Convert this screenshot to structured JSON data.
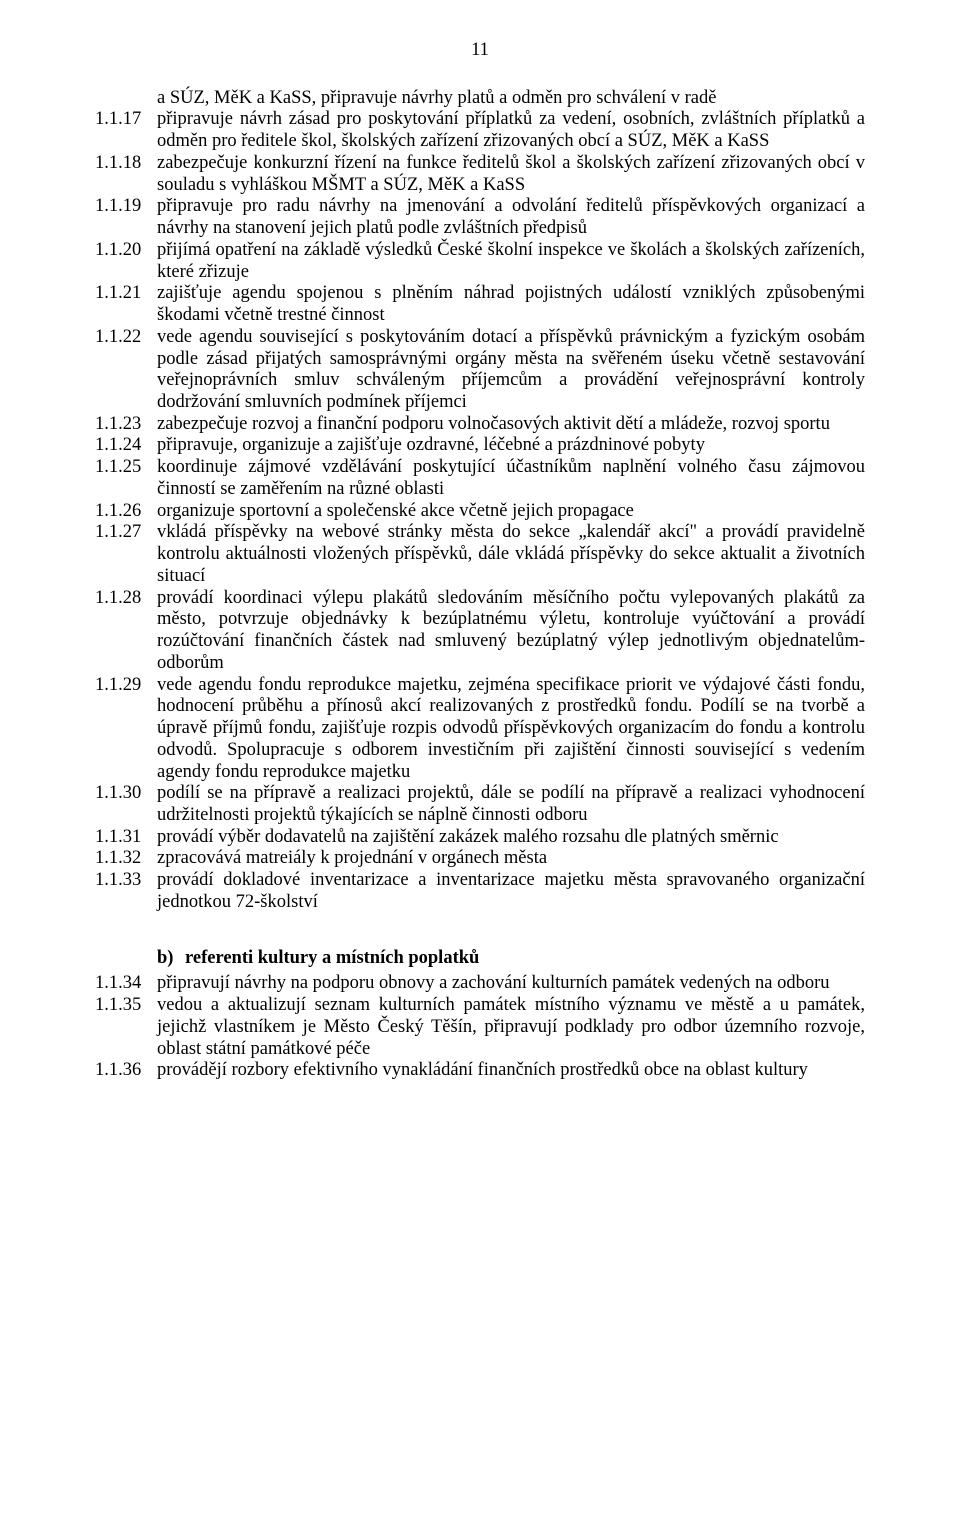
{
  "pageNumber": "11",
  "items": [
    {
      "num": "",
      "text": "a SÚZ, MěK a KaSS, připravuje návrhy platů a odměn pro schválení v radě"
    },
    {
      "num": "1.1.17",
      "text": "připravuje návrh zásad pro poskytování příplatků za vedení, osobních, zvláštních příplatků a odměn pro ředitele škol, školských zařízení zřizovaných obcí a SÚZ, MěK a KaSS"
    },
    {
      "num": "1.1.18",
      "text": "zabezpečuje konkurzní řízení na funkce ředitelů škol a školských zařízení zřizovaných obcí v souladu s vyhláškou MŠMT a SÚZ, MěK a KaSS"
    },
    {
      "num": "1.1.19",
      "text": "připravuje pro radu návrhy na jmenování a odvolání ředitelů příspěvkových organizací a návrhy na stanovení jejich platů podle zvláštních předpisů"
    },
    {
      "num": "1.1.20",
      "text": "přijímá opatření na základě výsledků České školní inspekce ve  školách a školských zařízeních, které zřizuje"
    },
    {
      "num": "1.1.21",
      "text": "zajišťuje agendu spojenou s plněním náhrad pojistných událostí vzniklých způsobenými škodami včetně trestné činnost"
    },
    {
      "num": "1.1.22",
      "text": "vede agendu související s poskytováním dotací a příspěvků právnickým a fyzickým osobám podle zásad přijatých samosprávnými orgány města na svěřeném úseku včetně sestavování veřejnoprávních smluv schváleným příjemcům a provádění veřejnosprávní kontroly dodržování smluvních podmínek příjemci"
    },
    {
      "num": "1.1.23",
      "text": "zabezpečuje rozvoj a finanční podporu volnočasových aktivit dětí a mládeže, rozvoj sportu"
    },
    {
      "num": "1.1.24",
      "text": "připravuje, organizuje a zajišťuje ozdravné, léčebné a prázdninové pobyty"
    },
    {
      "num": "1.1.25",
      "text": "koordinuje zájmové vzdělávání poskytující účastníkům naplnění volného času zájmovou činností se zaměřením na různé oblasti"
    },
    {
      "num": "1.1.26",
      "text": "organizuje sportovní a společenské akce včetně jejich propagace"
    },
    {
      "num": "1.1.27",
      "text": "vkládá příspěvky na webové stránky města do sekce „kalendář akcí\" a provádí pravidelně kontrolu aktuálnosti vložených příspěvků, dále vkládá příspěvky do sekce aktualit a životních situací"
    },
    {
      "num": "1.1.28",
      "text": "provádí koordinaci výlepu plakátů sledováním měsíčního počtu vylepovaných plakátů za město, potvrzuje objednávky k bezúplatnému výletu, kontroluje vyúčtování a provádí rozúčtování finančních částek nad smluvený bezúplatný výlep jednotlivým objednatelům-odborům"
    },
    {
      "num": "1.1.29",
      "text": "vede agendu fondu reprodukce majetku, zejména specifikace priorit ve výdajové části fondu, hodnocení průběhu a přínosů akcí realizovaných z prostředků fondu. Podílí se na tvorbě a úpravě příjmů fondu, zajišťuje rozpis odvodů příspěvkových organizacím do fondu a kontrolu odvodů. Spolupracuje s odborem investičním při zajištění činnosti související s vedením agendy fondu reprodukce majetku"
    },
    {
      "num": "1.1.30",
      "text": "podílí se na přípravě a realizaci projektů, dále se podílí na přípravě a realizaci vyhodnocení udržitelnosti projektů týkajících se náplně činnosti odboru"
    },
    {
      "num": "1.1.31",
      "text": "provádí výběr dodavatelů na zajištění zakázek malého rozsahu dle platných směrnic"
    },
    {
      "num": "1.1.32",
      "text": "zpracovává matreiály k projednání v orgánech města"
    },
    {
      "num": "1.1.33",
      "text": "provádí dokladové inventarizace a inventarizace majetku města spravovaného organizační jednotkou 72-školství"
    }
  ],
  "sectionB": {
    "label": "b)",
    "title": "referenti kultury a místních poplatků"
  },
  "itemsB": [
    {
      "num": "1.1.34",
      "text": "připravují návrhy na podporu obnovy a zachování kulturních památek vedených na odboru"
    },
    {
      "num": "1.1.35",
      "text": "vedou a aktualizují seznam kulturních památek místního významu ve městě a u památek, jejichž vlastníkem je Město Český Těšín, připravují podklady pro odbor územního rozvoje, oblast státní památkové péče"
    },
    {
      "num": "1.1.36",
      "text": "provádějí rozbory efektivního vynakládání finančních prostředků obce na oblast kultury"
    }
  ]
}
